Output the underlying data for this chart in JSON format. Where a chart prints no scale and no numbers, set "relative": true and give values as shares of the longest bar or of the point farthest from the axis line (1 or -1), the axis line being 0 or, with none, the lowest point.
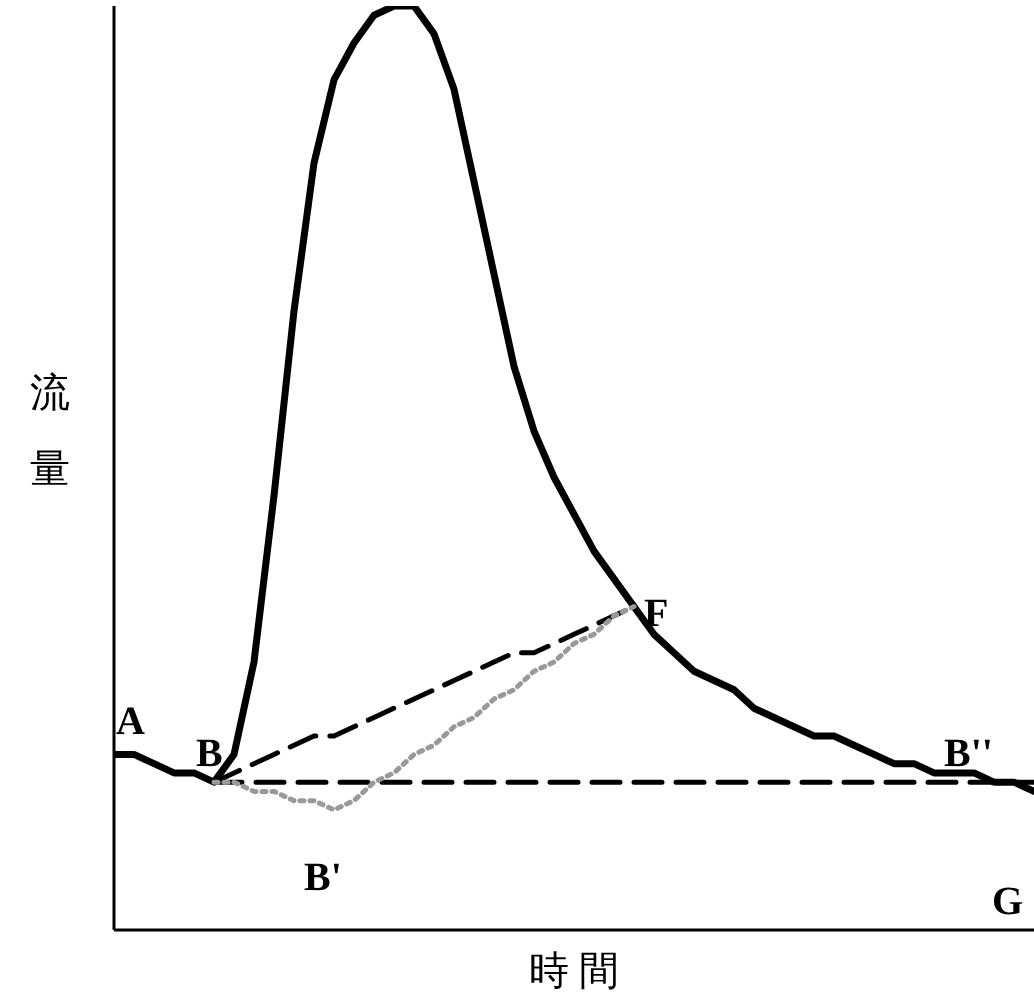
{
  "chart_data": {
    "type": "line",
    "relative": true,
    "xlabel": "時 間",
    "ylabel": "流量",
    "legend": false,
    "grid": false,
    "marker": "none",
    "categories": [
      null,
      null,
      null,
      null,
      null,
      null,
      null,
      null,
      null,
      null,
      null,
      null,
      null,
      null,
      null,
      null,
      null,
      null,
      null,
      null,
      null,
      null,
      null,
      null,
      null,
      null,
      null,
      null,
      null,
      null,
      null,
      null,
      null,
      null,
      null,
      null,
      null,
      null,
      null,
      null,
      null,
      null,
      null,
      null,
      null,
      null,
      null
    ],
    "series": [
      {
        "color": "#000000",
        "line_style": "solid",
        "values": [
          0.19,
          0.19,
          0.18,
          0.17,
          0.17,
          0.16,
          0.19,
          0.29,
          0.47,
          0.67,
          0.83,
          0.92,
          0.96,
          0.99,
          1,
          1,
          0.97,
          0.91,
          0.81,
          0.71,
          0.61,
          0.54,
          0.49,
          0.45,
          0.41,
          0.38,
          0.35,
          0.32,
          0.3,
          0.28,
          0.27,
          0.26,
          0.24,
          0.23,
          0.22,
          0.21,
          0.21,
          0.2,
          0.19,
          0.18,
          0.18,
          0.17,
          0.17,
          0.17,
          0.16,
          0.16,
          0.15
        ]
      },
      {
        "color": "#000000",
        "line_style": "dashed",
        "values": [
          null,
          null,
          null,
          null,
          null,
          0.16,
          0.17,
          0.18,
          0.19,
          0.2,
          0.21,
          0.21,
          0.22,
          0.23,
          0.24,
          0.25,
          0.26,
          0.27,
          0.28,
          0.29,
          0.3,
          0.3,
          0.31,
          0.32,
          0.33,
          0.34,
          0.35,
          null,
          null,
          null,
          null,
          null,
          null,
          null,
          null,
          null,
          null,
          null,
          null,
          null,
          null,
          null,
          null,
          null,
          null,
          null,
          null
        ]
      },
      {
        "color": "#000000",
        "line_style": "dashed",
        "values": [
          null,
          null,
          null,
          null,
          null,
          0.16,
          0.16,
          0.16,
          0.16,
          0.16,
          0.16,
          0.16,
          0.16,
          0.16,
          0.16,
          0.16,
          0.16,
          0.16,
          0.16,
          0.16,
          0.16,
          0.16,
          0.16,
          0.16,
          0.16,
          0.16,
          0.16,
          0.16,
          0.16,
          0.16,
          0.16,
          0.16,
          0.16,
          0.16,
          0.16,
          0.16,
          0.16,
          0.16,
          0.16,
          0.16,
          0.16,
          0.16,
          0.16,
          0.16,
          0.16,
          0.16,
          0.16
        ]
      },
      {
        "color": "#999999",
        "line_style": "dotted",
        "values": [
          null,
          null,
          null,
          null,
          null,
          0.16,
          0.16,
          0.15,
          0.15,
          0.14,
          0.14,
          0.13,
          0.14,
          0.16,
          0.17,
          0.19,
          0.2,
          0.22,
          0.23,
          0.25,
          0.26,
          0.28,
          0.29,
          0.31,
          0.32,
          0.34,
          0.35,
          null,
          null,
          null,
          null,
          null,
          null,
          null,
          null,
          null,
          null,
          null,
          null,
          null,
          null,
          null,
          null,
          null,
          null,
          null,
          null
        ]
      }
    ],
    "annotations": [
      "A",
      "B",
      "B'",
      "F",
      "B''",
      "G"
    ]
  }
}
